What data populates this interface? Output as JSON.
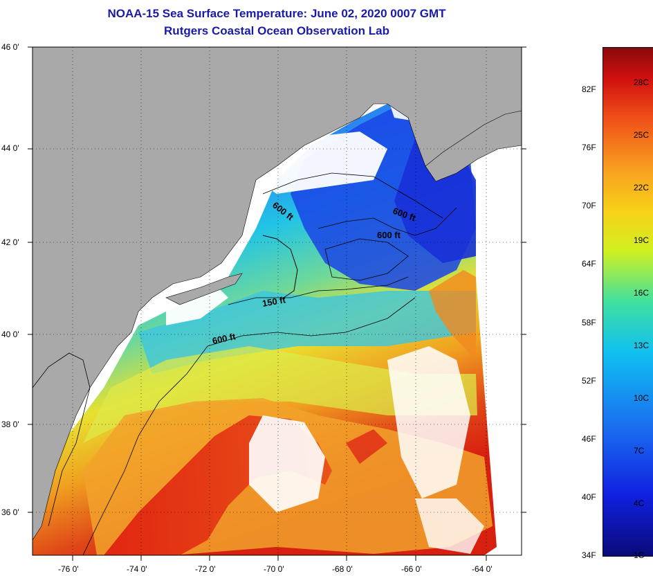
{
  "title": {
    "line1": "NOAA-15 Sea Surface Temperature:  June 02, 2020 0007 GMT",
    "line2": "Rutgers Coastal Ocean Observation Lab"
  },
  "axes": {
    "lat_ticks": [
      "46 0'",
      "44 0'",
      "42 0'",
      "40 0'",
      "38 0'",
      "36 0'"
    ],
    "lon_ticks": [
      "-76 0'",
      "-74 0'",
      "-72 0'",
      "-70 0'",
      "-68 0'",
      "-66 0'",
      "-64 0'"
    ]
  },
  "contours": {
    "label_600a": "600 ft",
    "label_600b": "600 ft",
    "label_600c": "600 ft",
    "label_150": "150 ft",
    "label_600d": "600 ft"
  },
  "colorbar": {
    "fahrenheit": [
      "82F",
      "76F",
      "70F",
      "64F",
      "58F",
      "52F",
      "46F",
      "40F",
      "34F"
    ],
    "celsius": [
      "28C",
      "25C",
      "22C",
      "19C",
      "16C",
      "13C",
      "10C",
      "7C",
      "4C",
      "1C"
    ]
  },
  "colors": {
    "land": "#a9a9a9",
    "title": "#1a1aa8",
    "cold": "#1030e0",
    "warm": "#e02010"
  }
}
